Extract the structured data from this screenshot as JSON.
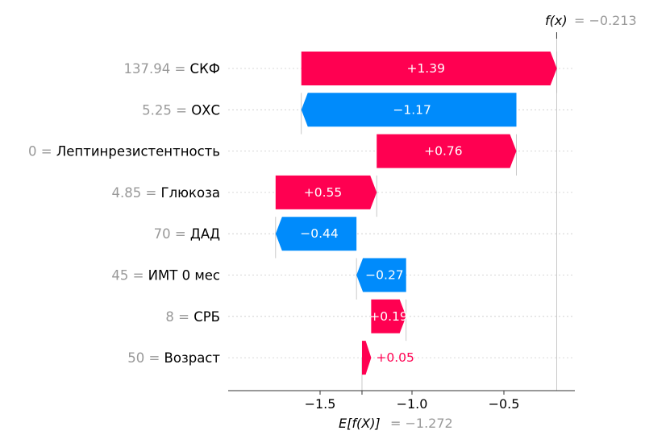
{
  "chart_data": {
    "type": "waterfall",
    "features": [
      {
        "value_text": "137.94",
        "name": "СКФ",
        "contribution": 1.39,
        "label": "+1.39"
      },
      {
        "value_text": "5.25",
        "name": "ОХС",
        "contribution": -1.17,
        "label": "−1.17"
      },
      {
        "value_text": "0",
        "name": "Лептинрезистентность",
        "contribution": 0.76,
        "label": "+0.76"
      },
      {
        "value_text": "4.85",
        "name": "Глюкоза",
        "contribution": 0.55,
        "label": "+0.55"
      },
      {
        "value_text": "70",
        "name": "ДАД",
        "contribution": -0.44,
        "label": "−0.44"
      },
      {
        "value_text": "45",
        "name": "ИМТ 0 мес",
        "contribution": -0.27,
        "label": "−0.27"
      },
      {
        "value_text": "8",
        "name": "СРБ",
        "contribution": 0.19,
        "label": "+0.19"
      },
      {
        "value_text": "50",
        "name": "Возраст",
        "contribution": 0.05,
        "label": "+0.05"
      }
    ],
    "base_value": -1.272,
    "final_value": -0.213,
    "fx_label": "f(x)",
    "fx_value_text": "= −0.213",
    "efx_label": "E[f(X)]",
    "efx_value_text": "= −1.272",
    "x_ticks": [
      {
        "value": -1.5,
        "label": "−1.5"
      },
      {
        "value": -1.0,
        "label": "−1.0"
      },
      {
        "value": -0.5,
        "label": "−0.5"
      }
    ],
    "colors": {
      "positive": "#ff0051",
      "negative": "#008bfb",
      "label_gray": "#999999"
    }
  }
}
